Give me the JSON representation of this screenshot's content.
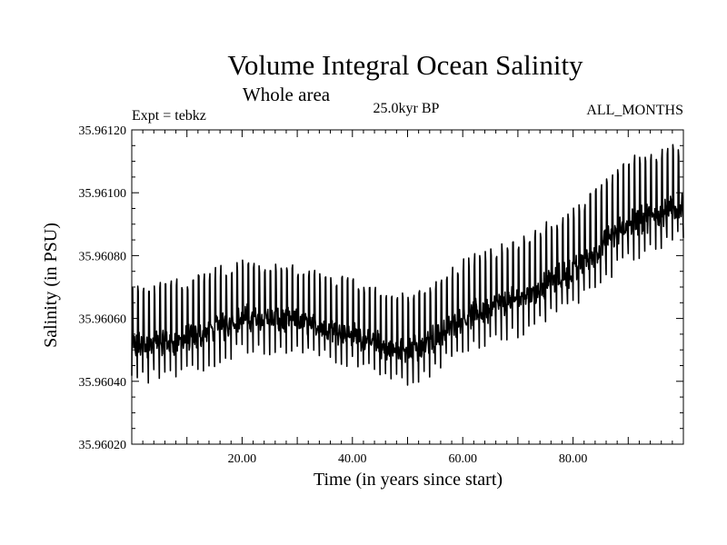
{
  "chart_data": {
    "type": "line",
    "title": "Volume Integral Ocean Salinity",
    "subtitle": "Whole area",
    "annotations": {
      "experiment": "Expt = tebkz",
      "period": "25.0kyr BP",
      "months": "ALL_MONTHS"
    },
    "xlabel": "Time (in years since start)",
    "ylabel": "Salinity (in PSU)",
    "xlim": [
      0,
      100
    ],
    "ylim": [
      35.9602,
      35.9612
    ],
    "x_ticks": [
      20,
      40,
      60,
      80
    ],
    "x_tick_labels": [
      "20.00",
      "40.00",
      "60.00",
      "80.00"
    ],
    "y_ticks": [
      35.9602,
      35.9604,
      35.9606,
      35.9608,
      35.961,
      35.9612
    ],
    "y_tick_labels": [
      "35.96020",
      "35.96040",
      "35.96060",
      "35.96080",
      "35.96100",
      "35.96120"
    ],
    "grid": false,
    "series": [
      {
        "name": "salinity",
        "color": "#000000",
        "cycle_years": 1,
        "trend_x": [
          0,
          10,
          20,
          30,
          40,
          47,
          52,
          60,
          70,
          80,
          90,
          100
        ],
        "trend_mean": [
          35.96051,
          35.96053,
          35.9606,
          35.96059,
          35.96055,
          35.9605,
          35.9605,
          35.9606,
          35.96066,
          35.96075,
          35.9609,
          35.96096
        ],
        "trend_amplitude": [
          0.00018,
          0.00018,
          0.00017,
          0.00016,
          0.00016,
          0.00016,
          0.00017,
          0.00017,
          0.00018,
          0.00018,
          0.00019,
          0.00018
        ]
      }
    ]
  }
}
